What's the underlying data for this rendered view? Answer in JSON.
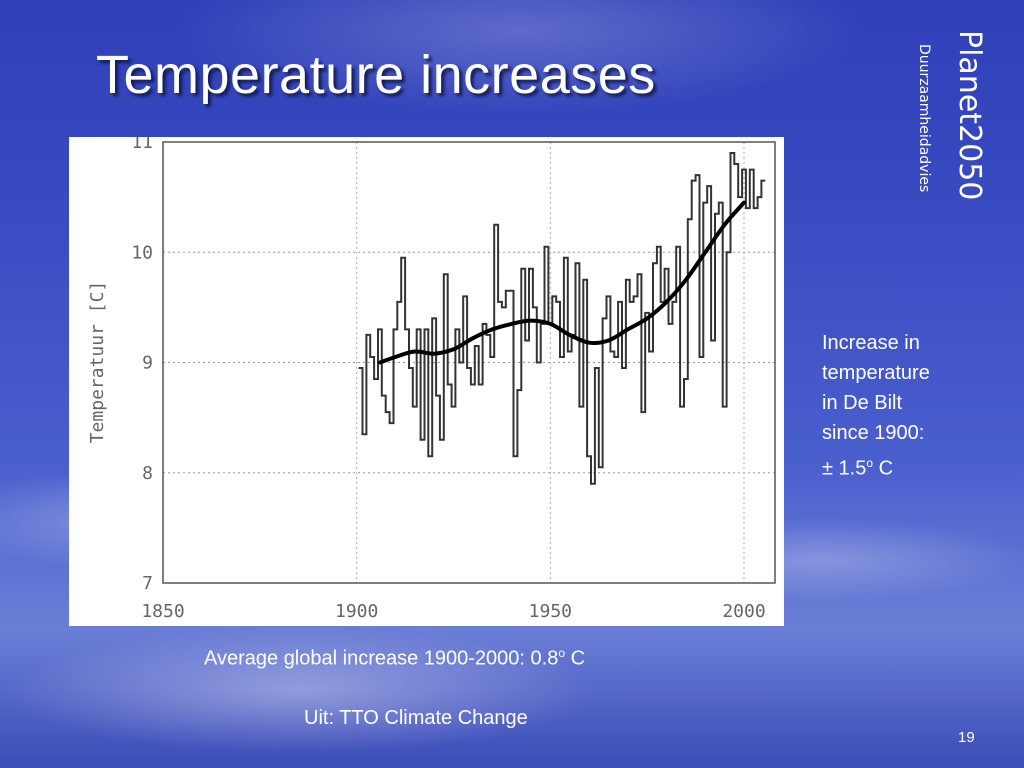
{
  "slide": {
    "title": "Temperature increases",
    "brand_main": "Planet2050",
    "brand_sub": "Duurzaamheidadvies",
    "side_line1": "Increase in",
    "side_line2": "temperature",
    "side_line3": "in De Bilt",
    "side_line4": "since 1900:",
    "side_line5_prefix": "± 1.5",
    "side_line5_sup": "o",
    "side_line5_suffix": " C",
    "caption_prefix": "Average global increase 1900-2000: 0.8",
    "caption_sup": "o",
    "caption_suffix": " C",
    "source": "Uit: TTO Climate Change",
    "page_number": "19"
  },
  "chart_data": {
    "type": "line",
    "ylabel": "Temperatuur [C]",
    "xlim": [
      1850,
      2008
    ],
    "ylim": [
      7,
      11
    ],
    "xticks": [
      1850,
      1900,
      1950,
      2000
    ],
    "yticks": [
      7,
      8,
      9,
      10,
      11
    ],
    "grid": "horizontal dotted",
    "series": [
      {
        "style": "step",
        "x": [
          1901,
          1902,
          1903,
          1904,
          1905,
          1906,
          1907,
          1908,
          1909,
          1910,
          1911,
          1912,
          1913,
          1914,
          1915,
          1916,
          1917,
          1918,
          1919,
          1920,
          1921,
          1922,
          1923,
          1924,
          1925,
          1926,
          1927,
          1928,
          1929,
          1930,
          1931,
          1932,
          1933,
          1934,
          1935,
          1936,
          1937,
          1938,
          1939,
          1940,
          1941,
          1942,
          1943,
          1944,
          1945,
          1946,
          1947,
          1948,
          1949,
          1950,
          1951,
          1952,
          1953,
          1954,
          1955,
          1956,
          1957,
          1958,
          1959,
          1960,
          1961,
          1962,
          1963,
          1964,
          1965,
          1966,
          1967,
          1968,
          1969,
          1970,
          1971,
          1972,
          1973,
          1974,
          1975,
          1976,
          1977,
          1978,
          1979,
          1980,
          1981,
          1982,
          1983,
          1984,
          1985,
          1986,
          1987,
          1988,
          1989,
          1990,
          1991,
          1992,
          1993,
          1994,
          1995,
          1996,
          1997,
          1998,
          1999,
          2000,
          2001,
          2002,
          2003,
          2004,
          2005
        ],
        "values": [
          8.95,
          8.35,
          9.25,
          9.05,
          8.85,
          9.3,
          8.7,
          8.55,
          8.45,
          9.3,
          9.55,
          9.95,
          9.3,
          8.95,
          8.6,
          9.3,
          8.3,
          9.3,
          8.15,
          9.4,
          8.7,
          8.3,
          9.8,
          8.8,
          8.6,
          9.3,
          9.0,
          9.6,
          8.95,
          8.8,
          9.15,
          8.8,
          9.35,
          9.25,
          9.05,
          10.25,
          9.55,
          9.5,
          9.65,
          9.65,
          8.15,
          8.75,
          9.85,
          9.2,
          9.85,
          9.5,
          9.0,
          9.35,
          10.05,
          9.35,
          9.6,
          9.55,
          9.05,
          9.95,
          9.1,
          9.25,
          9.9,
          8.6,
          9.75,
          8.15,
          7.9,
          8.95,
          8.05,
          9.4,
          9.6,
          9.1,
          9.05,
          9.55,
          8.95,
          9.75,
          9.55,
          9.6,
          9.8,
          8.55,
          9.45,
          9.1,
          9.9,
          10.05,
          9.55,
          9.85,
          9.35,
          9.55,
          10.05,
          8.6,
          8.85,
          10.3,
          10.65,
          10.7,
          9.05,
          10.45,
          10.6,
          9.2,
          10.35,
          10.45,
          8.6,
          10.0,
          10.9,
          10.8,
          10.5,
          10.75,
          10.4,
          10.75,
          10.4,
          10.5,
          10.65
        ]
      },
      {
        "style": "smooth",
        "x": [
          1906,
          1910,
          1915,
          1920,
          1925,
          1930,
          1935,
          1940,
          1945,
          1950,
          1955,
          1960,
          1965,
          1970,
          1975,
          1980,
          1985,
          1990,
          1995,
          2000
        ],
        "values": [
          9.0,
          9.05,
          9.1,
          9.08,
          9.12,
          9.22,
          9.3,
          9.35,
          9.38,
          9.35,
          9.25,
          9.18,
          9.2,
          9.3,
          9.4,
          9.55,
          9.75,
          10.0,
          10.25,
          10.45
        ]
      }
    ]
  }
}
